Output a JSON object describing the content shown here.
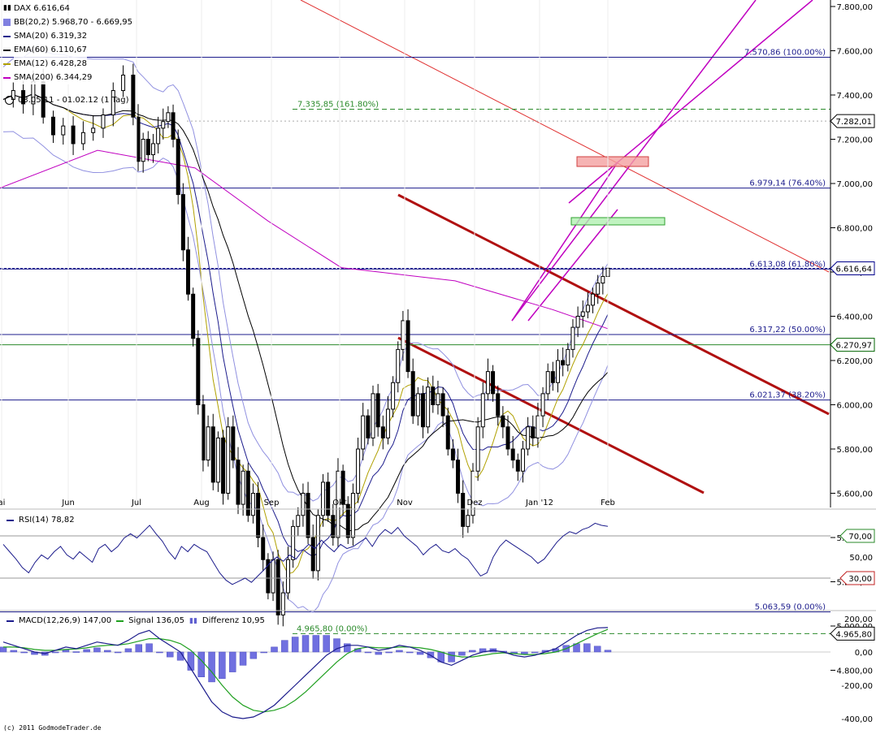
{
  "header": {
    "symbol_label": "DAX 6.616,64",
    "indicators": [
      {
        "label": "BB(20,2) 5.968,70 - 6.669,95",
        "color": "#8080e0"
      },
      {
        "label": "SMA(20) 6.319,32",
        "color": "#1c1c8c"
      },
      {
        "label": "EMA(60) 6.110,67",
        "color": "#000000"
      },
      {
        "label": "EMA(12) 6.428,28",
        "color": "#b0a000"
      },
      {
        "label": "SMA(200) 6.344,29",
        "color": "#c000c0"
      }
    ],
    "period": "03.05.11 - 01.02.12 (1 Tag)"
  },
  "copyright": "(c) 2011 GodmodeTrader.de",
  "chart_data": [
    {
      "type": "candlestick",
      "title": "DAX 6.616,64",
      "x_tick_labels": [
        "ai",
        "Jun",
        "Jul",
        "Aug",
        "Sep",
        "Okt",
        "Nov",
        "Dez",
        "Jan '12",
        "Feb"
      ],
      "y_tick_labels": [
        "7.800,00",
        "7.600,00",
        "7.400,00",
        "7.200,00",
        "7.000,00",
        "6.800,00",
        "6.600,00",
        "6.400,00",
        "6.200,00",
        "6.000,00",
        "5.800,00",
        "5.600,00",
        "5.400,00",
        "5.200,00",
        "5.000,00",
        "4.800,00"
      ],
      "ylim": [
        4700,
        7850
      ],
      "close_path": [
        [
          0,
          7380
        ],
        [
          2,
          7420
        ],
        [
          4,
          7360
        ],
        [
          6,
          7460
        ],
        [
          8,
          7300
        ],
        [
          10,
          7220
        ],
        [
          12,
          7260
        ],
        [
          14,
          7180
        ],
        [
          16,
          7230
        ],
        [
          18,
          7250
        ],
        [
          20,
          7310
        ],
        [
          22,
          7420
        ],
        [
          24,
          7490
        ],
        [
          26,
          7300
        ],
        [
          27,
          7100
        ],
        [
          28,
          7200
        ],
        [
          29,
          7130
        ],
        [
          30,
          7180
        ],
        [
          31,
          7250
        ],
        [
          32,
          7280
        ],
        [
          33,
          7320
        ],
        [
          34,
          7200
        ],
        [
          35,
          6950
        ],
        [
          36,
          6700
        ],
        [
          37,
          6500
        ],
        [
          38,
          6300
        ],
        [
          39,
          6000
        ],
        [
          40,
          5750
        ],
        [
          41,
          5900
        ],
        [
          42,
          5650
        ],
        [
          43,
          5850
        ],
        [
          44,
          5600
        ],
        [
          45,
          5900
        ],
        [
          46,
          5750
        ],
        [
          47,
          5550
        ],
        [
          48,
          5700
        ],
        [
          49,
          5500
        ],
        [
          50,
          5600
        ],
        [
          51,
          5400
        ],
        [
          52,
          5300
        ],
        [
          53,
          5150
        ],
        [
          54,
          5300
        ],
        [
          55,
          5050
        ],
        [
          56,
          5150
        ],
        [
          57,
          5300
        ],
        [
          58,
          5450
        ],
        [
          59,
          5500
        ],
        [
          60,
          5600
        ],
        [
          61,
          5400
        ],
        [
          62,
          5250
        ],
        [
          63,
          5500
        ],
        [
          64,
          5650
        ],
        [
          65,
          5500
        ],
        [
          66,
          5400
        ],
        [
          67,
          5700
        ],
        [
          68,
          5550
        ],
        [
          69,
          5400
        ],
        [
          70,
          5600
        ],
        [
          71,
          5800
        ],
        [
          72,
          5950
        ],
        [
          73,
          5850
        ],
        [
          74,
          6050
        ],
        [
          75,
          5900
        ],
        [
          76,
          5850
        ],
        [
          77,
          5980
        ],
        [
          78,
          6100
        ],
        [
          79,
          6250
        ],
        [
          80,
          6380
        ],
        [
          81,
          6150
        ],
        [
          82,
          5950
        ],
        [
          83,
          6050
        ],
        [
          84,
          5900
        ],
        [
          85,
          6080
        ],
        [
          86,
          6000
        ],
        [
          87,
          6050
        ],
        [
          88,
          5950
        ],
        [
          89,
          5800
        ],
        [
          90,
          5750
        ],
        [
          91,
          5600
        ],
        [
          92,
          5450
        ],
        [
          93,
          5500
        ],
        [
          94,
          5700
        ],
        [
          95,
          5900
        ],
        [
          96,
          6050
        ],
        [
          97,
          6150
        ],
        [
          98,
          6050
        ],
        [
          99,
          5950
        ],
        [
          100,
          5900
        ],
        [
          101,
          5800
        ],
        [
          102,
          5750
        ],
        [
          103,
          5700
        ],
        [
          104,
          5800
        ],
        [
          105,
          5900
        ],
        [
          106,
          5850
        ],
        [
          107,
          5950
        ],
        [
          108,
          6050
        ],
        [
          109,
          6150
        ],
        [
          110,
          6100
        ],
        [
          111,
          6200
        ],
        [
          112,
          6180
        ],
        [
          113,
          6250
        ],
        [
          114,
          6350
        ],
        [
          115,
          6400
        ],
        [
          116,
          6420
        ],
        [
          117,
          6450
        ],
        [
          118,
          6500
        ],
        [
          119,
          6550
        ],
        [
          120,
          6580
        ],
        [
          121,
          6617
        ]
      ],
      "fibonacci_top": [
        {
          "value": 7570.86,
          "label": "7.570,86 (100.00%)"
        },
        {
          "value": 6979.14,
          "label": "6.979,14 (76.40%)"
        },
        {
          "value": 6613.08,
          "label": "6.613,08 (61.80%)"
        },
        {
          "value": 6317.22,
          "label": "6.317,22 (50.00%)"
        },
        {
          "value": 6021.37,
          "label": "6.021,37 (38.20%)"
        },
        {
          "value": 5063.59,
          "label": "5.063,59 (0.00%)"
        }
      ],
      "fibonacci_dashed": [
        {
          "value": 7335.85,
          "label": "7.335,85 (161.80%)"
        },
        {
          "value": 4965.8,
          "label": "4.965,80 (0.00%)"
        }
      ],
      "price_markers": [
        {
          "value": 7282.01,
          "label": "7.282,01",
          "color": "#000000"
        },
        {
          "value": 6616.64,
          "label": "6.616,64",
          "color": "#00008b"
        },
        {
          "value": 6270.97,
          "label": "6.270,97",
          "color": "#006400"
        },
        {
          "value": 4965.8,
          "label": "4.965,80",
          "color": "#000000"
        }
      ]
    },
    {
      "type": "line",
      "title": "RSI(14) 78,82",
      "series": [
        {
          "name": "RSI(14) 78,82",
          "color": "#1c1c8c"
        }
      ],
      "y_tick_labels": [
        "70,00",
        "50,00",
        "30,00"
      ],
      "levels": [
        70,
        30
      ],
      "ylim": [
        20,
        90
      ],
      "values": [
        62,
        55,
        48,
        40,
        35,
        45,
        52,
        48,
        55,
        60,
        52,
        48,
        55,
        50,
        45,
        58,
        62,
        55,
        60,
        68,
        72,
        68,
        74,
        80,
        72,
        65,
        55,
        48,
        60,
        55,
        62,
        58,
        55,
        45,
        35,
        28,
        24,
        27,
        30,
        26,
        32,
        38,
        45,
        50,
        46,
        52,
        48,
        56,
        62,
        58,
        66,
        60,
        55,
        62,
        58,
        60,
        64,
        68,
        60,
        70,
        76,
        72,
        78,
        70,
        65,
        60,
        52,
        58,
        62,
        56,
        54,
        58,
        52,
        48,
        40,
        32,
        35,
        50,
        60,
        66,
        62,
        58,
        54,
        50,
        44,
        48,
        56,
        64,
        70,
        74,
        72,
        76,
        78,
        82,
        80,
        79
      ]
    },
    {
      "type": "line",
      "title": "MACD(12,26,9) 147,00",
      "series": [
        {
          "name": "MACD(12,26,9) 147,00",
          "color": "#1c1c8c"
        },
        {
          "name": "Signal 136,05",
          "color": "#20a020"
        },
        {
          "name": "Differenz 10,95",
          "color": "#6060d0"
        }
      ],
      "y_tick_labels": [
        "200,00",
        "0,00",
        "-200,00",
        "-400,00"
      ],
      "ylim": [
        -420,
        230
      ],
      "macd": [
        60,
        40,
        20,
        0,
        -10,
        10,
        30,
        20,
        40,
        60,
        50,
        40,
        70,
        110,
        130,
        80,
        40,
        0,
        -100,
        -200,
        -300,
        -360,
        -390,
        -400,
        -390,
        -360,
        -320,
        -260,
        -200,
        -140,
        -80,
        -20,
        20,
        40,
        40,
        30,
        10,
        20,
        40,
        30,
        10,
        -20,
        -60,
        -80,
        -50,
        -20,
        0,
        10,
        0,
        -20,
        -30,
        -20,
        0,
        20,
        60,
        100,
        130,
        145,
        147
      ],
      "signal": [
        30,
        30,
        25,
        15,
        10,
        10,
        15,
        18,
        25,
        35,
        40,
        42,
        50,
        65,
        80,
        80,
        70,
        50,
        10,
        -50,
        -120,
        -200,
        -270,
        -320,
        -350,
        -360,
        -350,
        -330,
        -290,
        -240,
        -180,
        -120,
        -60,
        -10,
        20,
        30,
        25,
        25,
        30,
        30,
        25,
        15,
        0,
        -20,
        -30,
        -30,
        -20,
        -10,
        -5,
        -10,
        -15,
        -15,
        -10,
        0,
        20,
        50,
        80,
        110,
        136
      ],
      "differenz": [
        30,
        10,
        -5,
        -15,
        -20,
        0,
        15,
        2,
        15,
        25,
        10,
        -2,
        20,
        45,
        50,
        0,
        -30,
        -50,
        -110,
        -150,
        -180,
        -160,
        -120,
        -80,
        -40,
        0,
        30,
        70,
        90,
        100,
        100,
        100,
        80,
        50,
        20,
        0,
        -15,
        -5,
        10,
        0,
        -15,
        -35,
        -60,
        -60,
        -20,
        10,
        20,
        20,
        5,
        -10,
        -15,
        -5,
        10,
        20,
        40,
        50,
        50,
        35,
        11
      ]
    }
  ]
}
